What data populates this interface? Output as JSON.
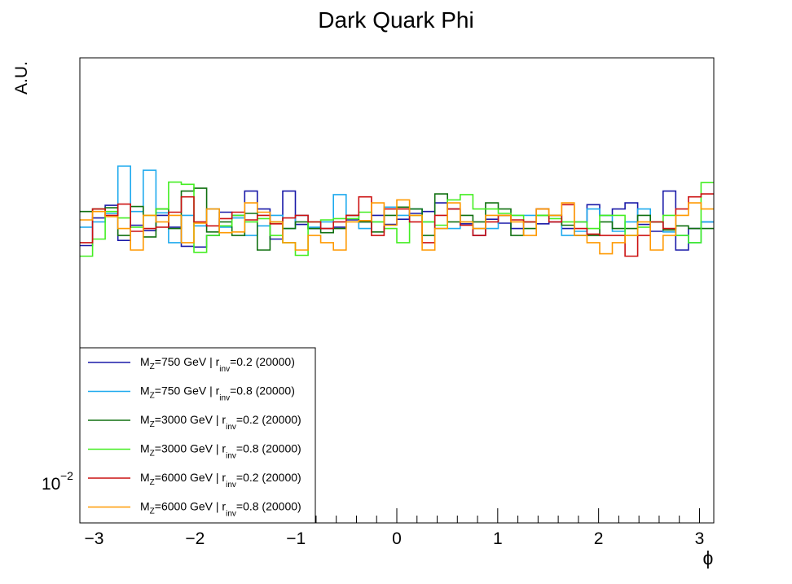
{
  "chart_data": {
    "type": "line",
    "title": "Dark Quark Phi",
    "xlabel": "ϕ",
    "ylabel": "A.U.",
    "xlim": [
      -3.1416,
      3.1416
    ],
    "y_scale": "log",
    "ylim": [
      0.0083,
      0.07
    ],
    "x_ticks": [
      -3,
      -2,
      -1,
      0,
      1,
      2,
      3
    ],
    "x_tick_labels": [
      "−3",
      "−2",
      "−1",
      "0",
      "1",
      "2",
      "3"
    ],
    "y_tick_label": {
      "base": "10",
      "exponent": "−2",
      "value": 0.01
    },
    "legend_placement": "bottom-left",
    "grid": false,
    "bins": 50,
    "series": [
      {
        "label": {
          "m_prefix": "M",
          "m_sub": "Z",
          "m_value": "=750 GeV | r",
          "r_sub": "inv",
          "r_value": "=0.2 (20000)"
        },
        "color": "#1a1aa8",
        "values": [
          0.0296,
          0.0336,
          0.0356,
          0.0303,
          0.0325,
          0.0317,
          0.034,
          0.0322,
          0.0295,
          0.0294,
          0.031,
          0.0345,
          0.034,
          0.038,
          0.035,
          0.0305,
          0.038,
          0.0326,
          0.032,
          0.032,
          0.0322,
          0.0333,
          0.033,
          0.034,
          0.0326,
          0.0334,
          0.0343,
          0.0346,
          0.036,
          0.035,
          0.0327,
          0.031,
          0.0334,
          0.0328,
          0.032,
          0.033,
          0.0327,
          0.033,
          0.032,
          0.033,
          0.0357,
          0.034,
          0.035,
          0.036,
          0.0326,
          0.0316,
          0.038,
          0.029,
          0.032,
          0.033
        ]
      },
      {
        "label": {
          "m_prefix": "M",
          "m_sub": "Z",
          "m_value": "=750 GeV | r",
          "r_sub": "inv",
          "r_value": "=0.8 (20000)"
        },
        "color": "#1eaaee",
        "values": [
          0.0322,
          0.033,
          0.0343,
          0.0426,
          0.0346,
          0.0418,
          0.0344,
          0.03,
          0.034,
          0.0324,
          0.035,
          0.0322,
          0.0336,
          0.031,
          0.0324,
          0.034,
          0.032,
          0.034,
          0.0322,
          0.033,
          0.0374,
          0.034,
          0.032,
          0.033,
          0.0353,
          0.034,
          0.035,
          0.033,
          0.032,
          0.032,
          0.033,
          0.032,
          0.032,
          0.034,
          0.034,
          0.034,
          0.035,
          0.034,
          0.031,
          0.0316,
          0.035,
          0.034,
          0.0316,
          0.033,
          0.035,
          0.033,
          0.0315,
          0.031,
          0.03,
          0.033
        ]
      },
      {
        "label": {
          "m_prefix": "M",
          "m_sub": "Z",
          "m_value": "=3000 GeV | r",
          "r_sub": "inv",
          "r_value": "=0.2 (20000)"
        },
        "color": "#107010",
        "values": [
          0.0346,
          0.035,
          0.0352,
          0.031,
          0.0354,
          0.0308,
          0.035,
          0.032,
          0.038,
          0.0385,
          0.0315,
          0.033,
          0.031,
          0.0343,
          0.029,
          0.033,
          0.032,
          0.033,
          0.032,
          0.0314,
          0.032,
          0.034,
          0.033,
          0.0315,
          0.034,
          0.0353,
          0.035,
          0.031,
          0.0375,
          0.033,
          0.034,
          0.033,
          0.036,
          0.035,
          0.031,
          0.032,
          0.034,
          0.034,
          0.0325,
          0.031,
          0.031,
          0.033,
          0.032,
          0.032,
          0.034,
          0.033,
          0.0318,
          0.0324,
          0.032,
          0.032
        ]
      },
      {
        "label": {
          "m_prefix": "M",
          "m_sub": "Z",
          "m_value": "=3000 GeV | r",
          "r_sub": "inv",
          "r_value": "=0.8 (20000)"
        },
        "color": "#44ee22",
        "values": [
          0.0282,
          0.0305,
          0.0346,
          0.0336,
          0.0322,
          0.034,
          0.035,
          0.0396,
          0.0392,
          0.0287,
          0.031,
          0.0324,
          0.034,
          0.033,
          0.0335,
          0.031,
          0.03,
          0.0283,
          0.033,
          0.0333,
          0.0335,
          0.0335,
          0.0345,
          0.033,
          0.032,
          0.03,
          0.034,
          0.033,
          0.0325,
          0.0365,
          0.0374,
          0.035,
          0.035,
          0.0343,
          0.034,
          0.033,
          0.034,
          0.0335,
          0.033,
          0.033,
          0.032,
          0.034,
          0.034,
          0.031,
          0.0322,
          0.033,
          0.034,
          0.031,
          0.03,
          0.0395
        ]
      },
      {
        "label": {
          "m_prefix": "M",
          "m_sub": "Z",
          "m_value": "=6000 GeV | r",
          "r_sub": "inv",
          "r_value": "=0.2 (20000)"
        },
        "color": "#cc1111",
        "values": [
          0.03,
          0.035,
          0.034,
          0.0358,
          0.0316,
          0.032,
          0.0322,
          0.0345,
          0.037,
          0.033,
          0.0324,
          0.0335,
          0.0345,
          0.0333,
          0.034,
          0.0327,
          0.0336,
          0.034,
          0.033,
          0.032,
          0.033,
          0.034,
          0.037,
          0.031,
          0.035,
          0.035,
          0.033,
          0.03,
          0.034,
          0.035,
          0.0325,
          0.031,
          0.033,
          0.034,
          0.0333,
          0.033,
          0.035,
          0.033,
          0.0357,
          0.032,
          0.0312,
          0.031,
          0.031,
          0.0282,
          0.031,
          0.033,
          0.032,
          0.035,
          0.037,
          0.0375
        ]
      },
      {
        "label": {
          "m_prefix": "M",
          "m_sub": "Z",
          "m_value": "=6000 GeV | r",
          "r_sub": "inv",
          "r_value": "=0.8 (20000)"
        },
        "color": "#ff9900",
        "values": [
          0.0333,
          0.0346,
          0.0338,
          0.032,
          0.029,
          0.034,
          0.033,
          0.034,
          0.03,
          0.0328,
          0.035,
          0.0314,
          0.0315,
          0.036,
          0.0345,
          0.033,
          0.03,
          0.029,
          0.031,
          0.03,
          0.029,
          0.033,
          0.0332,
          0.036,
          0.0325,
          0.0365,
          0.034,
          0.029,
          0.032,
          0.036,
          0.033,
          0.032,
          0.034,
          0.034,
          0.033,
          0.031,
          0.035,
          0.034,
          0.036,
          0.031,
          0.03,
          0.0285,
          0.03,
          0.031,
          0.033,
          0.029,
          0.031,
          0.034,
          0.036,
          0.035
        ]
      }
    ]
  }
}
